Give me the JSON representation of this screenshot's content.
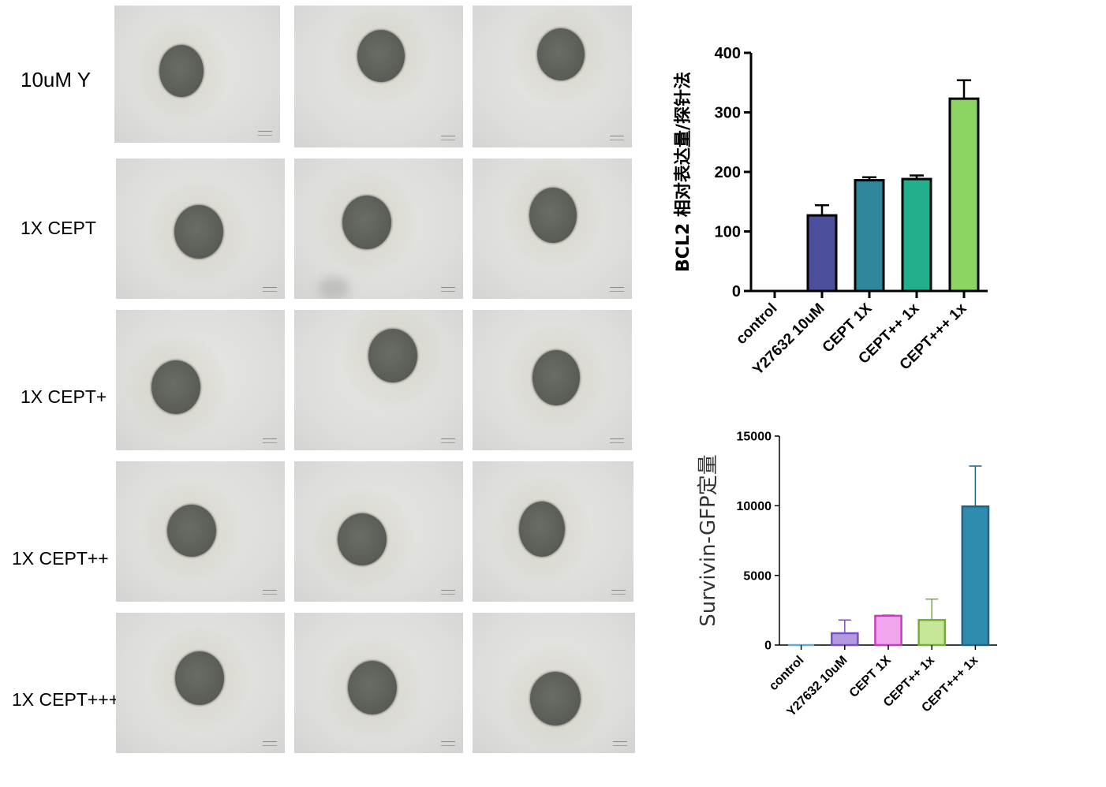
{
  "row_labels": [
    "10uM Y",
    "1X CEPT",
    "1X CEPT+",
    "1X CEPT++",
    "1X CEPT+++"
  ],
  "micrographs": {
    "description_rows": 5,
    "columns": 3,
    "content_color": "#5c5e59"
  },
  "chart_data": [
    {
      "type": "bar",
      "ylabel": "BCL2 相对表达量/探针法",
      "categories": [
        "control",
        "Y27632 10uM",
        "CEPT 1X",
        "CEPT++ 1x",
        "CEPT+++ 1x"
      ],
      "values": [
        0,
        127,
        186,
        188,
        323
      ],
      "errors": [
        0,
        17,
        5,
        6,
        31
      ],
      "colors": [
        "#3b1f5c",
        "#4b4f9c",
        "#30879b",
        "#22b08c",
        "#8cd563"
      ],
      "ylim": [
        0,
        400
      ],
      "yticks": [
        0,
        100,
        200,
        300,
        400
      ],
      "grid": false
    },
    {
      "type": "bar",
      "ylabel": "Survivin-GFP定量",
      "categories": [
        "control",
        "Y27632 10uM",
        "CEPT 1X",
        "CEPT++ 1x",
        "CEPT+++ 1x"
      ],
      "values": [
        0,
        850,
        2100,
        1800,
        9950
      ],
      "errors": [
        0,
        950,
        50,
        1500,
        2900
      ],
      "fills": [
        "#bfe3ef",
        "#b39ae0",
        "#f1a6ef",
        "#c7e697",
        "#2f8cae"
      ],
      "strokes": [
        "#5aaed0",
        "#7a50c0",
        "#c040c0",
        "#73ad3c",
        "#1f6485"
      ],
      "ylim": [
        0,
        15000
      ],
      "yticks": [
        0,
        5000,
        10000,
        15000
      ],
      "grid": false
    }
  ]
}
